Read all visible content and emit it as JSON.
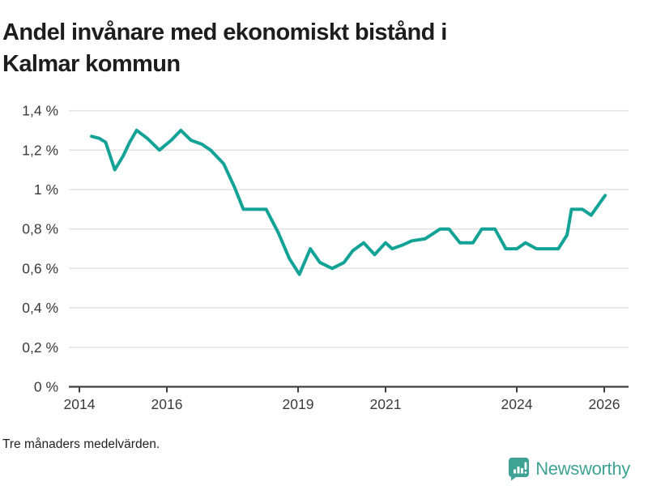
{
  "title": "Andel invånare med ekonomiskt bistånd i Kalmar kommun",
  "footnote": "Tre månaders medelvärden.",
  "logo": {
    "text": "Newsworthy"
  },
  "colors": {
    "line": "#12a296",
    "grid": "#e3e3e3",
    "axis": "#3f3f3f",
    "tick_text": "#3a3a3a",
    "title_text": "#1d1d1d",
    "brand": "#3fa294"
  },
  "chart_data": {
    "type": "line",
    "title": "Andel invånare med ekonomiskt bistånd i Kalmar kommun",
    "xlabel": "",
    "ylabel": "",
    "unit": "%",
    "grid": true,
    "legend": "none",
    "xlim": [
      2013.76,
      2026.55
    ],
    "ylim": [
      0,
      1.4
    ],
    "x_ticks": [
      2014,
      2016,
      2019,
      2021,
      2024,
      2026
    ],
    "x_tick_labels": [
      "2014",
      "2016",
      "2019",
      "2021",
      "2024",
      "2026"
    ],
    "y_ticks": [
      0,
      0.2,
      0.4,
      0.6,
      0.8,
      1.0,
      1.2,
      1.4
    ],
    "y_tick_labels": [
      "0 %",
      "0,2 %",
      "0,4 %",
      "0,6 %",
      "0,8 %",
      "1 %",
      "1,2 %",
      "1,4 %"
    ],
    "series": [
      {
        "name": "Andel invånare med ekonomiskt bistånd",
        "x": [
          2014.28,
          2014.45,
          2014.6,
          2014.81,
          2015.0,
          2015.15,
          2015.31,
          2015.55,
          2015.83,
          2016.1,
          2016.32,
          2016.55,
          2016.8,
          2017.0,
          2017.3,
          2017.55,
          2017.75,
          2018.27,
          2018.55,
          2018.8,
          2019.03,
          2019.28,
          2019.5,
          2019.78,
          2020.05,
          2020.25,
          2020.5,
          2020.75,
          2021.0,
          2021.15,
          2021.4,
          2021.6,
          2021.9,
          2022.25,
          2022.45,
          2022.7,
          2023.0,
          2023.2,
          2023.5,
          2023.75,
          2024.0,
          2024.2,
          2024.45,
          2024.95,
          2025.15,
          2025.25,
          2025.5,
          2025.7,
          2026.02
        ],
        "y": [
          1.27,
          1.26,
          1.24,
          1.1,
          1.17,
          1.24,
          1.3,
          1.26,
          1.2,
          1.25,
          1.3,
          1.25,
          1.23,
          1.2,
          1.13,
          1.01,
          0.9,
          0.9,
          0.78,
          0.65,
          0.57,
          0.7,
          0.63,
          0.6,
          0.63,
          0.69,
          0.73,
          0.67,
          0.73,
          0.7,
          0.72,
          0.74,
          0.75,
          0.8,
          0.8,
          0.73,
          0.73,
          0.8,
          0.8,
          0.7,
          0.7,
          0.73,
          0.7,
          0.7,
          0.77,
          0.9,
          0.9,
          0.87,
          0.97
        ]
      }
    ]
  }
}
